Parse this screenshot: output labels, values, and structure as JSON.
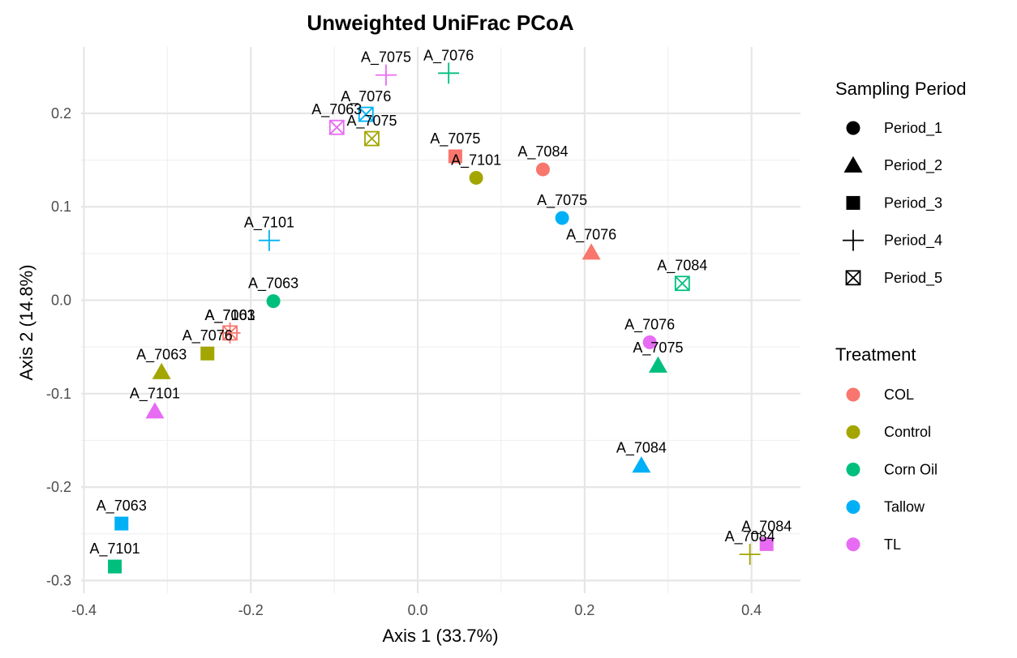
{
  "chart_data": {
    "type": "scatter",
    "title": "Unweighted UniFrac PCoA",
    "xlabel": "Axis 1 (33.7%)",
    "ylabel": "Axis 2 (14.8%)",
    "xlim": [
      -0.4,
      0.45
    ],
    "ylim": [
      -0.3,
      0.25
    ],
    "xticks": [
      -0.4,
      -0.2,
      0.0,
      0.2,
      0.4
    ],
    "xtick_labels": [
      "-0.4",
      "-0.2",
      "0.0",
      "0.2",
      "0.4"
    ],
    "yticks": [
      -0.3,
      -0.2,
      -0.1,
      0.0,
      0.1,
      0.2
    ],
    "ytick_labels": [
      "-0.3",
      "-0.2",
      "-0.1",
      "0.0",
      "0.1",
      "0.2"
    ],
    "grid": true,
    "legend_position": "right",
    "shape_legend": {
      "title": "Sampling Period",
      "items": [
        {
          "label": "Period_1",
          "shape": "circle"
        },
        {
          "label": "Period_2",
          "shape": "triangle"
        },
        {
          "label": "Period_3",
          "shape": "square"
        },
        {
          "label": "Period_4",
          "shape": "plus"
        },
        {
          "label": "Period_5",
          "shape": "boxx"
        }
      ]
    },
    "color_legend": {
      "title": "Treatment",
      "items": [
        {
          "label": "COL",
          "color": "#F8766D"
        },
        {
          "label": "Control",
          "color": "#A3A500"
        },
        {
          "label": "Corn Oil",
          "color": "#00BF7D"
        },
        {
          "label": "Tallow",
          "color": "#00B0F6"
        },
        {
          "label": "TL",
          "color": "#E76BF3"
        }
      ]
    },
    "points": [
      {
        "label": "A_7084",
        "x": 0.15,
        "y": 0.14,
        "period": "Period_1",
        "treatment": "COL"
      },
      {
        "label": "A_7101",
        "x": 0.07,
        "y": 0.131,
        "period": "Period_1",
        "treatment": "Control"
      },
      {
        "label": "A_7063",
        "x": -0.173,
        "y": -0.001,
        "period": "Period_1",
        "treatment": "Corn Oil"
      },
      {
        "label": "A_7075",
        "x": 0.173,
        "y": 0.088,
        "period": "Period_1",
        "treatment": "Tallow"
      },
      {
        "label": "A_7076",
        "x": 0.278,
        "y": -0.045,
        "period": "Period_1",
        "treatment": "TL"
      },
      {
        "label": "A_7076",
        "x": 0.208,
        "y": 0.051,
        "period": "Period_2",
        "treatment": "COL"
      },
      {
        "label": "A_7063",
        "x": -0.307,
        "y": -0.077,
        "period": "Period_2",
        "treatment": "Control"
      },
      {
        "label": "A_7075",
        "x": 0.288,
        "y": -0.07,
        "period": "Period_2",
        "treatment": "Corn Oil"
      },
      {
        "label": "A_7084",
        "x": 0.268,
        "y": -0.177,
        "period": "Period_2",
        "treatment": "Tallow"
      },
      {
        "label": "A_7101",
        "x": -0.315,
        "y": -0.119,
        "period": "Period_2",
        "treatment": "TL"
      },
      {
        "label": "A_7075",
        "x": 0.045,
        "y": 0.154,
        "period": "Period_3",
        "treatment": "COL"
      },
      {
        "label": "A_7076",
        "x": -0.252,
        "y": -0.057,
        "period": "Period_3",
        "treatment": "Control"
      },
      {
        "label": "A_7101",
        "x": -0.363,
        "y": -0.285,
        "period": "Period_3",
        "treatment": "Corn Oil"
      },
      {
        "label": "A_7063",
        "x": -0.355,
        "y": -0.239,
        "period": "Period_3",
        "treatment": "Tallow"
      },
      {
        "label": "A_7084",
        "x": 0.418,
        "y": -0.261,
        "period": "Period_3",
        "treatment": "TL"
      },
      {
        "label": "A_7101",
        "x": -0.225,
        "y": -0.035,
        "period": "Period_4",
        "treatment": "COL"
      },
      {
        "label": "A_7084",
        "x": 0.398,
        "y": -0.272,
        "period": "Period_4",
        "treatment": "Control"
      },
      {
        "label": "A_7076",
        "x": 0.037,
        "y": 0.243,
        "period": "Period_4",
        "treatment": "Corn Oil"
      },
      {
        "label": "A_7101",
        "x": -0.178,
        "y": 0.064,
        "period": "Period_4",
        "treatment": "Tallow"
      },
      {
        "label": "A_7075",
        "x": -0.038,
        "y": 0.241,
        "period": "Period_4",
        "treatment": "TL"
      },
      {
        "label": "A_7063",
        "x": -0.225,
        "y": -0.035,
        "period": "Period_5",
        "treatment": "COL"
      },
      {
        "label": "A_7075",
        "x": -0.055,
        "y": 0.173,
        "period": "Period_5",
        "treatment": "Control"
      },
      {
        "label": "A_7084",
        "x": 0.317,
        "y": 0.018,
        "period": "Period_5",
        "treatment": "Corn Oil"
      },
      {
        "label": "A_7076",
        "x": -0.062,
        "y": 0.199,
        "period": "Period_5",
        "treatment": "Tallow"
      },
      {
        "label": "A_7063",
        "x": -0.097,
        "y": 0.185,
        "period": "Period_5",
        "treatment": "TL"
      }
    ]
  }
}
